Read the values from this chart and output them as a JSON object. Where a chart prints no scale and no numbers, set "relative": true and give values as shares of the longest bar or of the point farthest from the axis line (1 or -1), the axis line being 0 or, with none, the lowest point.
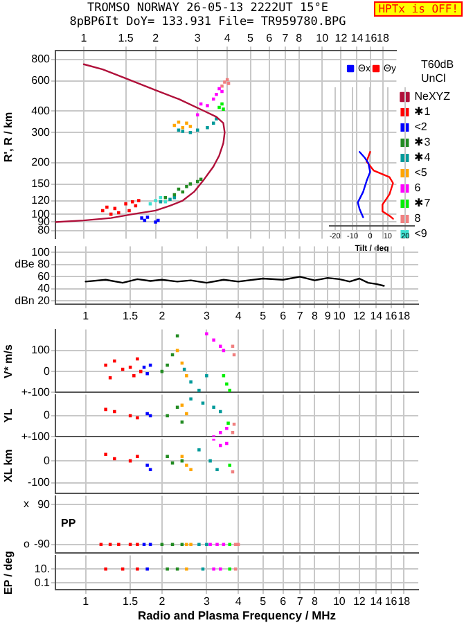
{
  "chart_data": [
    {
      "type": "scatter",
      "title": "TROMSO NORWAY   26-05-13 2222UT 15°E",
      "subtitle": "8pBP6It DoY= 133.931 File= TR959780.BPG",
      "ylabel": "R', R / km",
      "annotations": [
        "HPTx is OFF!",
        "T60dB",
        "UnCl"
      ],
      "log": "xy",
      "grid": true,
      "legend": "right",
      "marker": "square",
      "xlim": [
        0.76,
        20.5
      ],
      "xticks": [
        1,
        1.5,
        2,
        3,
        4,
        5,
        6,
        7,
        8,
        10,
        12,
        14,
        16,
        18
      ],
      "ylim": [
        72,
        900
      ],
      "yticks": [
        80,
        90,
        100,
        120,
        150,
        200,
        300,
        400,
        600,
        800
      ],
      "series": [
        {
          "name": "NeXYZ",
          "type": "line",
          "marker": "none",
          "color": "#b0103a",
          "x": [
            0.76,
            1.0,
            1.3,
            1.6,
            2.0,
            2.3,
            2.6,
            2.9,
            3.2,
            3.5,
            3.7,
            3.85,
            3.9,
            3.85,
            3.6,
            3.2,
            2.5,
            2.0,
            1.5,
            1.2,
            1.0
          ],
          "values": [
            90,
            92,
            95,
            100,
            105,
            112,
            120,
            135,
            160,
            190,
            220,
            260,
            300,
            340,
            370,
            400,
            470,
            530,
            620,
            700,
            750
          ]
        },
        {
          "name": "✱1",
          "color": "#ff0000",
          "x": [
            1.2,
            1.25,
            1.3,
            1.35,
            1.4,
            1.5,
            1.55,
            1.6,
            1.65,
            1.7
          ],
          "values": [
            105,
            110,
            100,
            108,
            102,
            115,
            105,
            118,
            112,
            120
          ]
        },
        {
          "name": "<2",
          "color": "#0000ff",
          "x": [
            1.75,
            1.8,
            1.85,
            2.0,
            2.05
          ],
          "values": [
            95,
            92,
            96,
            90,
            92
          ]
        },
        {
          "name": "✱3",
          "color": "#228b22",
          "x": [
            2.2,
            2.4,
            2.5,
            2.6,
            2.7,
            2.8,
            3.0,
            3.1
          ],
          "values": [
            125,
            130,
            140,
            135,
            145,
            150,
            155,
            160
          ]
        },
        {
          "name": "✱4",
          "color": "#009a9a",
          "x": [
            2.1,
            2.3,
            2.4,
            2.5,
            2.6,
            2.8,
            3.0,
            3.3,
            3.5,
            3.6
          ],
          "values": [
            118,
            122,
            125,
            310,
            305,
            300,
            310,
            320,
            340,
            360
          ]
        },
        {
          "name": "<5",
          "color": "#ffa500",
          "x": [
            2.4,
            2.5,
            2.6,
            2.7,
            2.8
          ],
          "values": [
            330,
            345,
            320,
            340,
            325
          ]
        },
        {
          "name": "6",
          "color": "#ff00ff",
          "x": [
            3.0,
            3.1,
            3.3,
            3.5,
            3.6,
            3.7,
            3.8
          ],
          "values": [
            380,
            440,
            430,
            470,
            500,
            540,
            520
          ]
        },
        {
          "name": "✱7",
          "color": "#00ee00",
          "x": [
            3.7,
            3.8,
            3.85
          ],
          "values": [
            420,
            440,
            410
          ]
        },
        {
          "name": "8",
          "color": "#f08080",
          "x": [
            3.8,
            3.9,
            4.0,
            4.05
          ],
          "values": [
            560,
            590,
            610,
            580
          ]
        },
        {
          "name": "<9",
          "color": "#40e0d0",
          "x": [
            1.9,
            2.0,
            2.1,
            2.2
          ],
          "values": [
            115,
            120,
            125,
            118
          ]
        }
      ]
    },
    {
      "type": "line",
      "xlabel": "Tilt / deg",
      "relative": true,
      "grid": "x",
      "legend": "top",
      "xlim": [
        -23,
        25
      ],
      "xticks": [
        -20,
        -10,
        0,
        10,
        20
      ],
      "series": [
        {
          "name": "Θx",
          "color": "#0000ff",
          "x": [
            -6,
            -3,
            -1,
            0,
            -2,
            -4,
            -7,
            -6,
            -4
          ],
          "values": [
            1,
            0.92,
            0.85,
            0.73,
            0.61,
            0.46,
            0.32,
            0.23,
            0.12
          ]
        },
        {
          "name": "Θy",
          "color": "#ff0000",
          "x": [
            0,
            -2,
            2,
            11,
            13,
            11,
            7,
            7,
            11,
            13
          ],
          "values": [
            1,
            0.87,
            0.75,
            0.66,
            0.58,
            0.43,
            0.29,
            0.2,
            0.14,
            0.1
          ]
        }
      ]
    },
    {
      "type": "line",
      "log": "x",
      "grid": true,
      "xlim": [
        0.76,
        20.5
      ],
      "xticks": [
        1,
        1.5,
        2,
        3,
        4,
        5,
        6,
        7,
        8,
        9,
        10,
        12,
        14,
        16,
        18
      ],
      "ylim": [
        15,
        110
      ],
      "yticks": [
        100,
        {
          "value": 80,
          "label": "dBe 80"
        },
        60,
        40,
        {
          "value": 20,
          "label": "dBn 20"
        }
      ],
      "series": [
        {
          "color": "#000000",
          "x": [
            1,
            1.2,
            1.4,
            1.6,
            1.8,
            2,
            2.3,
            2.6,
            3,
            3.5,
            4,
            5,
            6,
            7,
            8,
            9,
            10,
            11,
            12,
            13,
            14,
            15
          ],
          "values": [
            52,
            55,
            50,
            56,
            53,
            55,
            52,
            54,
            50,
            55,
            52,
            57,
            55,
            60,
            54,
            58,
            56,
            52,
            57,
            50,
            48,
            45
          ]
        }
      ]
    },
    {
      "type": "scatter",
      "ylabel": "V* m/s",
      "log": "x",
      "grid": true,
      "marker": "square",
      "tick_labels": "y",
      "xlim": [
        0.76,
        20.5
      ],
      "xticks": [
        {
          "value": 1,
          "label": null
        },
        {
          "value": 2,
          "label": null
        },
        {
          "value": 3,
          "label": null
        },
        {
          "value": 4,
          "label": null
        },
        {
          "value": 5,
          "label": null
        },
        {
          "value": 6,
          "label": null
        },
        {
          "value": 7,
          "label": null
        },
        {
          "value": 8,
          "label": null
        },
        {
          "value": 10,
          "label": null
        },
        {
          "value": 12,
          "label": null
        },
        {
          "value": 14,
          "label": null
        },
        {
          "value": 16,
          "label": null
        },
        {
          "value": 18,
          "label": null
        }
      ],
      "ylim": [
        -100,
        200
      ],
      "yticks": [
        100,
        0,
        {
          "value": -100,
          "label": "+-100"
        }
      ],
      "series": [
        {
          "color": "#ff0000",
          "x": [
            1.2,
            1.25,
            1.3,
            1.4,
            1.5,
            1.55,
            1.6,
            1.65
          ],
          "values": [
            30,
            -30,
            50,
            10,
            20,
            -20,
            60,
            0
          ]
        },
        {
          "color": "#0000ff",
          "x": [
            1.7,
            1.75,
            1.8
          ],
          "values": [
            20,
            -10,
            30
          ]
        },
        {
          "color": "#228b22",
          "x": [
            2.0,
            2.1,
            2.2,
            2.3
          ],
          "values": [
            0,
            30,
            80,
            170
          ]
        },
        {
          "color": "#ffa500",
          "x": [
            2.3,
            2.4,
            2.5
          ],
          "values": [
            100,
            40,
            -20
          ]
        },
        {
          "color": "#009a9a",
          "x": [
            2.45,
            2.6,
            2.8,
            3.0
          ],
          "values": [
            10,
            -50,
            -90,
            -20
          ]
        },
        {
          "color": "#ff00ff",
          "x": [
            3.0,
            3.2,
            3.4,
            3.5
          ],
          "values": [
            180,
            150,
            120,
            100
          ]
        },
        {
          "color": "#00ee00",
          "x": [
            3.5,
            3.6,
            3.7
          ],
          "values": [
            -20,
            -60,
            -90
          ]
        },
        {
          "color": "#f08080",
          "x": [
            3.8,
            3.85
          ],
          "values": [
            120,
            80
          ]
        }
      ]
    },
    {
      "type": "scatter",
      "ylabel": "YL",
      "log": "x",
      "grid": true,
      "marker": "square",
      "tick_labels": "y",
      "xlim": [
        0.76,
        20.5
      ],
      "xticks": [
        {
          "value": 1,
          "label": null
        },
        {
          "value": 2,
          "label": null
        },
        {
          "value": 3,
          "label": null
        },
        {
          "value": 4,
          "label": null
        },
        {
          "value": 5,
          "label": null
        },
        {
          "value": 6,
          "label": null
        },
        {
          "value": 7,
          "label": null
        },
        {
          "value": 8,
          "label": null
        },
        {
          "value": 10,
          "label": null
        },
        {
          "value": 12,
          "label": null
        },
        {
          "value": 14,
          "label": null
        },
        {
          "value": 16,
          "label": null
        },
        {
          "value": 18,
          "label": null
        }
      ],
      "ylim": [
        -100,
        100
      ],
      "yticks": [
        0,
        {
          "value": -100,
          "label": "+-100"
        }
      ],
      "series": [
        {
          "color": "#ff0000",
          "x": [
            1.2,
            1.3,
            1.5,
            1.6
          ],
          "values": [
            30,
            20,
            0,
            -10
          ]
        },
        {
          "color": "#0000ff",
          "x": [
            1.75,
            1.8
          ],
          "values": [
            10,
            0
          ]
        },
        {
          "color": "#228b22",
          "x": [
            2.1,
            2.3,
            2.4
          ],
          "values": [
            0,
            40,
            -30
          ]
        },
        {
          "color": "#ffa500",
          "x": [
            2.4,
            2.5
          ],
          "values": [
            50,
            10
          ]
        },
        {
          "color": "#009a9a",
          "x": [
            2.6,
            2.9,
            3.2,
            3.4
          ],
          "values": [
            80,
            60,
            40,
            20
          ]
        },
        {
          "color": "#ff00ff",
          "x": [
            3.2,
            3.4,
            3.6
          ],
          "values": [
            -100,
            -80,
            -60
          ]
        },
        {
          "color": "#00ee00",
          "x": [
            3.65
          ],
          "values": [
            -35
          ]
        },
        {
          "color": "#f08080",
          "x": [
            3.8,
            3.85
          ],
          "values": [
            -80,
            -40
          ]
        }
      ]
    },
    {
      "type": "scatter",
      "ylabel": "XL   km",
      "log": "x",
      "grid": true,
      "marker": "square",
      "tick_labels": "y",
      "xlim": [
        0.76,
        20.5
      ],
      "xticks": [
        {
          "value": 1,
          "label": null
        },
        {
          "value": 2,
          "label": null
        },
        {
          "value": 3,
          "label": null
        },
        {
          "value": 4,
          "label": null
        },
        {
          "value": 5,
          "label": null
        },
        {
          "value": 6,
          "label": null
        },
        {
          "value": 7,
          "label": null
        },
        {
          "value": 8,
          "label": null
        },
        {
          "value": 10,
          "label": null
        },
        {
          "value": 12,
          "label": null
        },
        {
          "value": 14,
          "label": null
        },
        {
          "value": 16,
          "label": null
        },
        {
          "value": 18,
          "label": null
        }
      ],
      "ylim": [
        -150,
        100
      ],
      "yticks": [
        0,
        -100
      ],
      "series": [
        {
          "color": "#ff0000",
          "x": [
            1.2,
            1.3,
            1.5,
            1.6
          ],
          "values": [
            30,
            10,
            0,
            20
          ]
        },
        {
          "color": "#0000ff",
          "x": [
            1.75,
            1.8
          ],
          "values": [
            -20,
            -40
          ]
        },
        {
          "color": "#228b22",
          "x": [
            2.1,
            2.2,
            2.4
          ],
          "values": [
            20,
            -10,
            0
          ]
        },
        {
          "color": "#ffa500",
          "x": [
            2.4,
            2.5,
            2.6
          ],
          "values": [
            20,
            -20,
            -40
          ]
        },
        {
          "color": "#009a9a",
          "x": [
            2.8,
            3.1,
            3.3
          ],
          "values": [
            50,
            0,
            -40
          ]
        },
        {
          "color": "#ff00ff",
          "x": [
            3.2,
            3.4,
            3.6
          ],
          "values": [
            100,
            70,
            80
          ]
        },
        {
          "color": "#00ee00",
          "x": [
            3.7
          ],
          "values": [
            -20
          ]
        },
        {
          "color": "#f08080",
          "x": [
            3.8
          ],
          "values": [
            -50
          ]
        }
      ]
    },
    {
      "type": "scatter",
      "annotations": [
        "PP",
        "x",
        "o"
      ],
      "log": "x",
      "grid": true,
      "marker": "square",
      "tick_labels": "y",
      "xlim": [
        0.76,
        20.5
      ],
      "xticks": [
        {
          "value": 1,
          "label": null
        },
        {
          "value": 2,
          "label": null
        },
        {
          "value": 3,
          "label": null
        },
        {
          "value": 4,
          "label": null
        },
        {
          "value": 5,
          "label": null
        },
        {
          "value": 6,
          "label": null
        },
        {
          "value": 7,
          "label": null
        },
        {
          "value": 8,
          "label": null
        },
        {
          "value": 10,
          "label": null
        },
        {
          "value": 12,
          "label": null
        },
        {
          "value": 14,
          "label": null
        },
        {
          "value": 16,
          "label": null
        },
        {
          "value": 18,
          "label": null
        }
      ],
      "ylim": [
        -130,
        130
      ],
      "yticks": [
        90,
        -90
      ],
      "series": [
        {
          "color": "#ff0000",
          "x": [
            1.15,
            1.25,
            1.35,
            1.5,
            1.6
          ],
          "values": [
            -90,
            -90,
            -90,
            -90,
            -90
          ]
        },
        {
          "color": "#0000ff",
          "x": [
            1.7,
            1.8
          ],
          "values": [
            -90,
            -90
          ]
        },
        {
          "color": "#228b22",
          "x": [
            2.0,
            2.2,
            2.4
          ],
          "values": [
            -90,
            -90,
            -90
          ]
        },
        {
          "color": "#ffa500",
          "x": [
            2.5,
            2.6
          ],
          "values": [
            -90,
            -90
          ]
        },
        {
          "color": "#009a9a",
          "x": [
            2.8,
            3.0
          ],
          "values": [
            -90,
            -90
          ]
        },
        {
          "color": "#ff00ff",
          "x": [
            3.1,
            3.3,
            3.5
          ],
          "values": [
            -90,
            -90,
            -90
          ]
        },
        {
          "color": "#00ee00",
          "x": [
            3.7
          ],
          "values": [
            -90
          ]
        },
        {
          "color": "#f08080",
          "x": [
            3.9,
            4.0
          ],
          "values": [
            -90,
            -90
          ]
        }
      ]
    },
    {
      "type": "scatter",
      "xlabel": "Radio and Plasma Frequency / MHz",
      "ylabel": "EP / deg",
      "log": "xy",
      "grid": true,
      "marker": "square",
      "xlim": [
        0.76,
        20.5
      ],
      "xticks": [
        1,
        1.5,
        2,
        3,
        4,
        5,
        6,
        7,
        8,
        10,
        12,
        14,
        16,
        18
      ],
      "ylim": [
        0.01,
        1000
      ],
      "yticks": [
        {
          "value": 10,
          "label": "10."
        },
        0.1
      ],
      "series": [
        {
          "color": "#ff0000",
          "x": [
            1.2,
            1.4,
            1.6
          ],
          "values": [
            10,
            10,
            10
          ]
        },
        {
          "color": "#0000ff",
          "x": [
            1.75
          ],
          "values": [
            10
          ]
        },
        {
          "color": "#228b22",
          "x": [
            2.1,
            2.3
          ],
          "values": [
            10,
            10
          ]
        },
        {
          "color": "#ffa500",
          "x": [
            2.5
          ],
          "values": [
            10
          ]
        },
        {
          "color": "#009a9a",
          "x": [
            2.9
          ],
          "values": [
            10
          ]
        },
        {
          "color": "#ff00ff",
          "x": [
            3.2,
            3.4
          ],
          "values": [
            10,
            10
          ]
        },
        {
          "color": "#00ee00",
          "x": [
            3.7
          ],
          "values": [
            10
          ]
        },
        {
          "color": "#f08080",
          "x": [
            3.9
          ],
          "values": [
            10
          ]
        }
      ]
    }
  ]
}
